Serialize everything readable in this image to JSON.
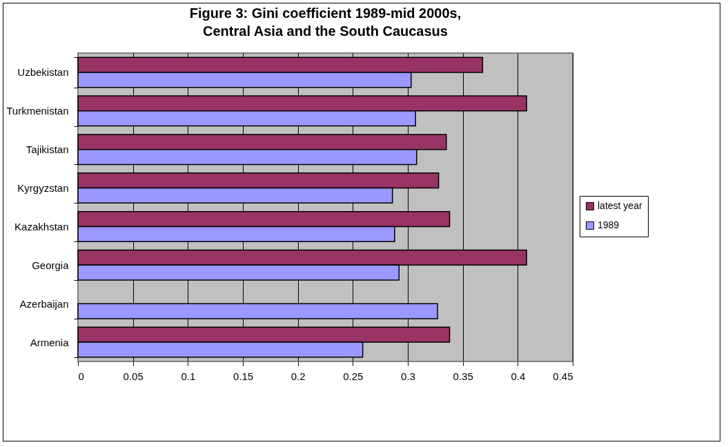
{
  "chart_data": {
    "type": "bar",
    "orientation": "horizontal",
    "title": "Figure 3: Gini coefficient 1989-mid 2000s,\nCentral Asia and the South Caucasus",
    "categories": [
      "Uzbekistan",
      "Turkmenistan",
      "Tajikistan",
      "Kyrgyzstan",
      "Kazakhstan",
      "Georgia",
      "Azerbaijan",
      "Armenia"
    ],
    "series": [
      {
        "name": "latest year",
        "color": "#993366",
        "values": [
          0.368,
          0.408,
          0.335,
          0.328,
          0.338,
          0.408,
          null,
          0.338
        ]
      },
      {
        "name": "1989",
        "color": "#9999ff",
        "values": [
          0.303,
          0.307,
          0.308,
          0.286,
          0.288,
          0.292,
          0.327,
          0.259
        ]
      }
    ],
    "xlim": [
      0,
      0.45
    ],
    "xticks": [
      0,
      0.05,
      0.1,
      0.15,
      0.2,
      0.25,
      0.3,
      0.35,
      0.4,
      0.45
    ],
    "grid": "x",
    "legend": "right"
  }
}
